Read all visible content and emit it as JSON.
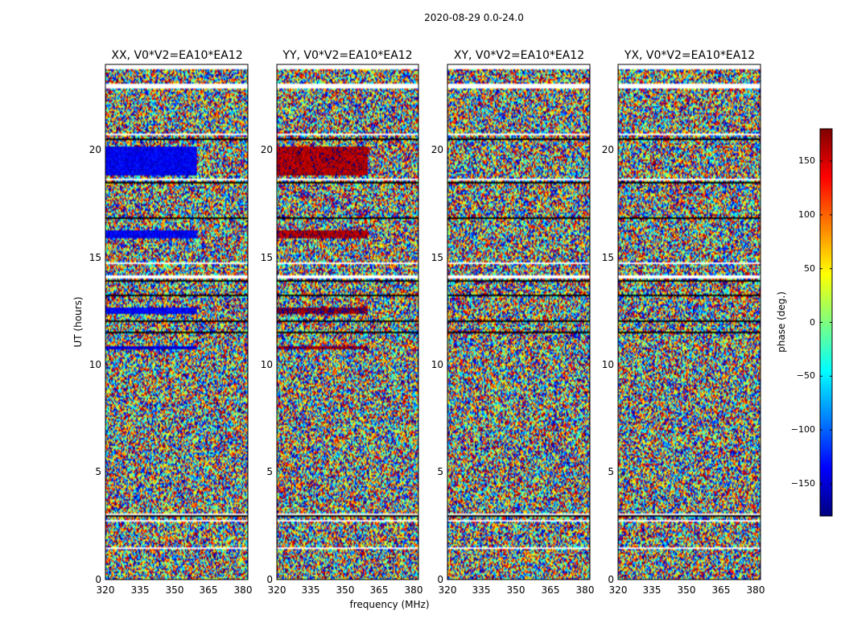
{
  "figure_title": "2020-08-29 0.0-24.0",
  "colors": {
    "jet": [
      "#00007f",
      "#0000ff",
      "#007fff",
      "#00ffff",
      "#7fff7f",
      "#ffff00",
      "#ff7f00",
      "#ff0000",
      "#7f0000"
    ],
    "flagged": "#ffffff",
    "blank_band": "#000000"
  },
  "chart_data": [
    {
      "type": "heatmap",
      "title": "XX, V0*V2=EA10*EA12",
      "xlabel": "frequency (MHz)",
      "ylabel": "UT (hours)",
      "xlim": [
        320,
        382
      ],
      "ylim": [
        0,
        24
      ],
      "xticks": [
        "320",
        "335",
        "350",
        "365",
        "380"
      ],
      "yticks": [
        "0",
        "5",
        "10",
        "15",
        "20"
      ],
      "coherent_bands": [
        {
          "ut_range": [
            18.8,
            20.2
          ],
          "freq_range": [
            320,
            360
          ],
          "phase_deg": -140
        },
        {
          "ut_range": [
            15.9,
            16.3
          ],
          "freq_range": [
            320,
            360
          ],
          "phase_deg": -140
        },
        {
          "ut_range": [
            12.4,
            12.7
          ],
          "freq_range": [
            320,
            360
          ],
          "phase_deg": -140
        },
        {
          "ut_range": [
            10.7,
            10.9
          ],
          "freq_range": [
            320,
            360
          ],
          "phase_deg": -150
        }
      ]
    },
    {
      "type": "heatmap",
      "title": "YY, V0*V2=EA10*EA12",
      "xlabel": "frequency (MHz)",
      "ylabel": "",
      "xlim": [
        320,
        382
      ],
      "ylim": [
        0,
        24
      ],
      "xticks": [
        "320",
        "335",
        "350",
        "365",
        "380"
      ],
      "yticks": [
        "0",
        "5",
        "10",
        "15",
        "20"
      ],
      "coherent_bands": [
        {
          "ut_range": [
            18.8,
            20.2
          ],
          "freq_range": [
            320,
            360
          ],
          "phase_deg": 165
        },
        {
          "ut_range": [
            15.9,
            16.3
          ],
          "freq_range": [
            320,
            360
          ],
          "phase_deg": 165
        },
        {
          "ut_range": [
            12.4,
            12.7
          ],
          "freq_range": [
            320,
            360
          ],
          "phase_deg": 175
        },
        {
          "ut_range": [
            10.7,
            10.9
          ],
          "freq_range": [
            320,
            360
          ],
          "phase_deg": 175
        }
      ]
    },
    {
      "type": "heatmap",
      "title": "XY, V0*V2=EA10*EA12",
      "xlabel": "",
      "ylabel": "",
      "xlim": [
        320,
        382
      ],
      "ylim": [
        0,
        24
      ],
      "xticks": [
        "320",
        "335",
        "350",
        "365",
        "380"
      ],
      "yticks": [
        "0",
        "5",
        "10",
        "15",
        "20"
      ],
      "coherent_bands": []
    },
    {
      "type": "heatmap",
      "title": "YX, V0*V2=EA10*EA12",
      "xlabel": "",
      "ylabel": "",
      "xlim": [
        320,
        382
      ],
      "ylim": [
        0,
        24
      ],
      "xticks": [
        "320",
        "335",
        "350",
        "365",
        "380"
      ],
      "yticks": [
        "0",
        "5",
        "10",
        "15",
        "20"
      ],
      "coherent_bands": []
    }
  ],
  "flagged_ut_bands": [
    [
      23.8,
      24.0
    ],
    [
      22.85,
      23.1
    ],
    [
      20.7,
      20.75
    ],
    [
      18.6,
      18.7
    ],
    [
      14.7,
      14.8
    ],
    [
      14.0,
      14.2
    ],
    [
      1.4,
      1.5
    ],
    [
      2.7,
      2.8
    ],
    [
      3.0,
      3.1
    ]
  ],
  "blank_ut_bands": [
    [
      20.5,
      20.55
    ],
    [
      18.45,
      18.5
    ],
    [
      17.6,
      17.65
    ],
    [
      16.8,
      16.85
    ],
    [
      14.45,
      14.5
    ],
    [
      13.9,
      13.95
    ],
    [
      13.2,
      13.25
    ],
    [
      12.0,
      12.05
    ],
    [
      11.5,
      11.55
    ],
    [
      10.25,
      10.3
    ],
    [
      2.95,
      3.0
    ]
  ],
  "colorbar": {
    "label": "phase (deg.)",
    "range": [
      -180,
      180
    ],
    "ticks": [
      "150",
      "100",
      "50",
      "0",
      "−50",
      "−100",
      "−150"
    ],
    "tick_values": [
      150,
      100,
      50,
      0,
      -50,
      -100,
      -150
    ],
    "cmap": "jet"
  }
}
